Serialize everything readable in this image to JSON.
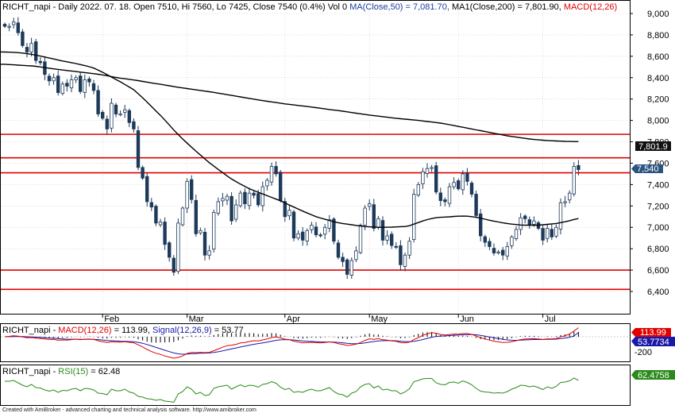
{
  "header": {
    "symbol": "RICHT_napi",
    "info": " - Daily 2022. 07. 18. Open 7510, Hi 7560, Lo 7425, Close 7540 (0.4%) Vol 0 ",
    "ma50": "MA(Close,50) = 7,081.70,",
    "ma200": " MA1(Close,200) = 7,801.90,",
    "macd": " MACD(12,26)"
  },
  "price_tags": {
    "ma200": "7,801.9",
    "close": "7,540"
  },
  "macd_panel": {
    "label_prefix": "RICHT_napi - ",
    "macd_label": "MACD(12,26)",
    "macd_value": " = 113.99, ",
    "signal_label": "Signal(12,26,9)",
    "signal_value": " = 53.77",
    "tag_macd": "113.99",
    "tag_signal": "53.7734",
    "tick": "-200"
  },
  "rsi_panel": {
    "label_prefix": "RICHT_napi - ",
    "rsi_label": "RSI(15)",
    "rsi_value": " = 62.48",
    "tag": "62.4758"
  },
  "footer": "Created with AmiBroker - advanced charting and technical analysis software. http://www.amibroker.com",
  "colors": {
    "macd": "#e00000",
    "signal": "#1a1aa8",
    "rsi": "#2a8a1a",
    "support": "#e00000",
    "ma": "#000000",
    "candle": "#1e3a5a",
    "grid": "#c8c8c8"
  },
  "chart_data": {
    "type": "candlestick",
    "ylim": [
      6300,
      9000
    ],
    "y_ticks": [
      6400,
      6600,
      6800,
      7000,
      7200,
      7400,
      7600,
      7800,
      8000,
      8200,
      8400,
      8600,
      8800,
      9000
    ],
    "y_tick_labels": [
      "6,400",
      "6,600",
      "6,800",
      "7,000",
      "7,200",
      "7,400",
      "7,600",
      "7,800",
      "8,000",
      "8,200",
      "8,400",
      "8,600",
      "8,800",
      "9,000"
    ],
    "x_labels": [
      "Feb",
      "Mar",
      "Apr",
      "May",
      "Jun",
      "Jul"
    ],
    "x_label_bar": [
      22,
      41,
      63,
      82,
      102,
      121
    ],
    "horizontal_lines": [
      7870,
      7650,
      7510,
      6600,
      6420
    ],
    "last_close": 7540,
    "closes": [
      8880,
      8880,
      8920,
      8820,
      8700,
      8640,
      8720,
      8560,
      8540,
      8430,
      8370,
      8400,
      8260,
      8340,
      8320,
      8380,
      8400,
      8270,
      8380,
      8360,
      8280,
      8060,
      8020,
      7920,
      8160,
      8060,
      8060,
      8100,
      7980,
      7920,
      7560,
      7460,
      7240,
      7190,
      7040,
      7050,
      6840,
      6720,
      6580,
      7040,
      7180,
      7430,
      7260,
      6940,
      6970,
      6740,
      6780,
      7140,
      7240,
      7270,
      7290,
      7060,
      7210,
      7320,
      7220,
      7320,
      7300,
      7210,
      7380,
      7440,
      7570,
      7500,
      7250,
      7100,
      7160,
      6900,
      6940,
      6880,
      6970,
      7020,
      6930,
      6920,
      7000,
      7070,
      6870,
      6720,
      6680,
      6560,
      6690,
      6780,
      7020,
      7180,
      7220,
      6990,
      7080,
      6880,
      6920,
      6830,
      6820,
      6650,
      6740,
      6870,
      7310,
      7400,
      7520,
      7550,
      7560,
      7330,
      7250,
      7240,
      7380,
      7420,
      7360,
      7500,
      7430,
      7310,
      7110,
      6920,
      6860,
      6820,
      6760,
      6770,
      6740,
      6820,
      6910,
      6980,
      7090,
      7080,
      7020,
      7060,
      6990,
      6880,
      6990,
      6910,
      7000,
      7230,
      7240,
      7320,
      7570,
      7540
    ],
    "ma50": [
      8640,
      8638,
      8637,
      8634,
      8630,
      8624,
      8619,
      8610,
      8602,
      8593,
      8583,
      8575,
      8565,
      8556,
      8548,
      8540,
      8532,
      8522,
      8513,
      8502,
      8490,
      8470,
      8450,
      8428,
      8406,
      8383,
      8361,
      8337,
      8312,
      8287,
      8250,
      8212,
      8172,
      8130,
      8088,
      8048,
      8003,
      7958,
      7910,
      7868,
      7826,
      7788,
      7750,
      7712,
      7676,
      7640,
      7605,
      7573,
      7542,
      7512,
      7480,
      7452,
      7428,
      7404,
      7382,
      7361,
      7344,
      7328,
      7312,
      7296,
      7280,
      7264,
      7248,
      7228,
      7208,
      7190,
      7170,
      7152,
      7134,
      7117,
      7100,
      7087,
      7075,
      7064,
      7052,
      7043,
      7036,
      7030,
      7024,
      7018,
      7012,
      7008,
      7005,
      7003,
      7000,
      7000,
      7001,
      7002,
      7004,
      7006,
      7008,
      7015,
      7030,
      7045,
      7060,
      7072,
      7082,
      7090,
      7094,
      7096,
      7098,
      7102,
      7104,
      7105,
      7104,
      7100,
      7094,
      7086,
      7076,
      7066,
      7058,
      7050,
      7042,
      7036,
      7030,
      7026,
      7022,
      7020,
      7020,
      7020,
      7020,
      7024,
      7028,
      7032,
      7036,
      7044,
      7052,
      7062,
      7074,
      7082
    ],
    "ma200": [
      8525,
      8522,
      8520,
      8517,
      8515,
      8512,
      8510,
      8506,
      8500,
      8494,
      8488,
      8482,
      8477,
      8472,
      8467,
      8462,
      8457,
      8452,
      8447,
      8442,
      8437,
      8432,
      8425,
      8418,
      8410,
      8402,
      8395,
      8390,
      8384,
      8378,
      8372,
      8365,
      8358,
      8351,
      8344,
      8338,
      8331,
      8324,
      8317,
      8310,
      8304,
      8298,
      8292,
      8286,
      8280,
      8274,
      8268,
      8262,
      8255,
      8248,
      8241,
      8234,
      8227,
      8220,
      8213,
      8206,
      8199,
      8192,
      8185,
      8179,
      8173,
      8167,
      8161,
      8155,
      8150,
      8145,
      8140,
      8135,
      8130,
      8125,
      8120,
      8114,
      8108,
      8102,
      8097,
      8092,
      8086,
      8080,
      8074,
      8068,
      8062,
      8056,
      8050,
      8045,
      8040,
      8035,
      8030,
      8025,
      8020,
      8016,
      8012,
      8008,
      8004,
      8000,
      7995,
      7990,
      7985,
      7980,
      7975,
      7968,
      7960,
      7952,
      7944,
      7936,
      7928,
      7920,
      7912,
      7904,
      7896,
      7888,
      7880,
      7872,
      7864,
      7856,
      7850,
      7844,
      7838,
      7832,
      7826,
      7822,
      7818,
      7815,
      7812,
      7810,
      7808,
      7806,
      7804,
      7803,
      7802,
      7802
    ],
    "macd": [
      0,
      5,
      12,
      8,
      -2,
      -12,
      -10,
      -18,
      -22,
      -28,
      -34,
      -32,
      -44,
      -40,
      -42,
      -36,
      -30,
      -38,
      -30,
      -29,
      -34,
      -50,
      -62,
      -72,
      -62,
      -66,
      -67,
      -62,
      -70,
      -76,
      -102,
      -128,
      -160,
      -186,
      -208,
      -222,
      -242,
      -256,
      -270,
      -260,
      -242,
      -210,
      -198,
      -200,
      -196,
      -200,
      -196,
      -176,
      -154,
      -132,
      -112,
      -106,
      -96,
      -78,
      -72,
      -60,
      -50,
      -52,
      -40,
      -28,
      -10,
      -2,
      -14,
      -30,
      -36,
      -56,
      -66,
      -76,
      -74,
      -70,
      -74,
      -78,
      -72,
      -64,
      -72,
      -88,
      -96,
      -110,
      -104,
      -94,
      -72,
      -46,
      -26,
      -32,
      -24,
      -38,
      -42,
      -52,
      -58,
      -74,
      -76,
      -68,
      -36,
      -12,
      18,
      36,
      52,
      44,
      30,
      22,
      28,
      34,
      32,
      40,
      40,
      30,
      10,
      -12,
      -28,
      -42,
      -56,
      -64,
      -72,
      -70,
      -62,
      -50,
      -36,
      -28,
      -26,
      -24,
      -28,
      -34,
      -26,
      -28,
      -22,
      -2,
      14,
      34,
      72,
      113.99
    ],
    "signal": [
      0,
      1,
      3,
      4,
      3,
      0,
      -2,
      -5,
      -8,
      -12,
      -16,
      -19,
      -24,
      -27,
      -30,
      -31,
      -31,
      -33,
      -32,
      -32,
      -32,
      -36,
      -41,
      -48,
      -50,
      -53,
      -56,
      -57,
      -60,
      -63,
      -71,
      -82,
      -98,
      -115,
      -134,
      -151,
      -170,
      -187,
      -204,
      -215,
      -220,
      -218,
      -214,
      -211,
      -208,
      -206,
      -204,
      -198,
      -189,
      -178,
      -165,
      -153,
      -141,
      -129,
      -117,
      -106,
      -95,
      -86,
      -77,
      -67,
      -56,
      -45,
      -39,
      -37,
      -37,
      -41,
      -46,
      -52,
      -56,
      -59,
      -62,
      -65,
      -66,
      -66,
      -67,
      -71,
      -76,
      -83,
      -87,
      -88,
      -85,
      -77,
      -67,
      -60,
      -53,
      -50,
      -48,
      -49,
      -51,
      -56,
      -60,
      -62,
      -57,
      -48,
      -35,
      -21,
      -6,
      4,
      9,
      11,
      15,
      19,
      21,
      25,
      28,
      29,
      25,
      18,
      8,
      -2,
      -13,
      -23,
      -33,
      -40,
      -44,
      -45,
      -43,
      -40,
      -37,
      -35,
      -35,
      -35,
      -33,
      -32,
      -30,
      -24,
      -16,
      -6,
      9,
      53.77
    ],
    "rsi": [
      60,
      60,
      62,
      56,
      50,
      46,
      52,
      44,
      43,
      38,
      35,
      38,
      32,
      37,
      36,
      40,
      42,
      36,
      42,
      41,
      38,
      30,
      29,
      26,
      40,
      36,
      36,
      40,
      33,
      30,
      22,
      20,
      16,
      15,
      12,
      14,
      10,
      9,
      7,
      28,
      34,
      46,
      40,
      28,
      32,
      24,
      26,
      42,
      46,
      48,
      50,
      40,
      46,
      51,
      46,
      50,
      49,
      45,
      52,
      54,
      59,
      55,
      45,
      39,
      42,
      32,
      34,
      32,
      37,
      40,
      36,
      36,
      40,
      44,
      34,
      28,
      26,
      20,
      30,
      34,
      46,
      52,
      54,
      43,
      48,
      38,
      40,
      36,
      36,
      28,
      33,
      41,
      59,
      62,
      66,
      67,
      67,
      56,
      52,
      51,
      57,
      58,
      55,
      61,
      57,
      51,
      42,
      35,
      33,
      32,
      30,
      31,
      30,
      34,
      40,
      44,
      50,
      49,
      46,
      48,
      44,
      39,
      46,
      42,
      47,
      57,
      58,
      61,
      68,
      62.48
    ]
  }
}
